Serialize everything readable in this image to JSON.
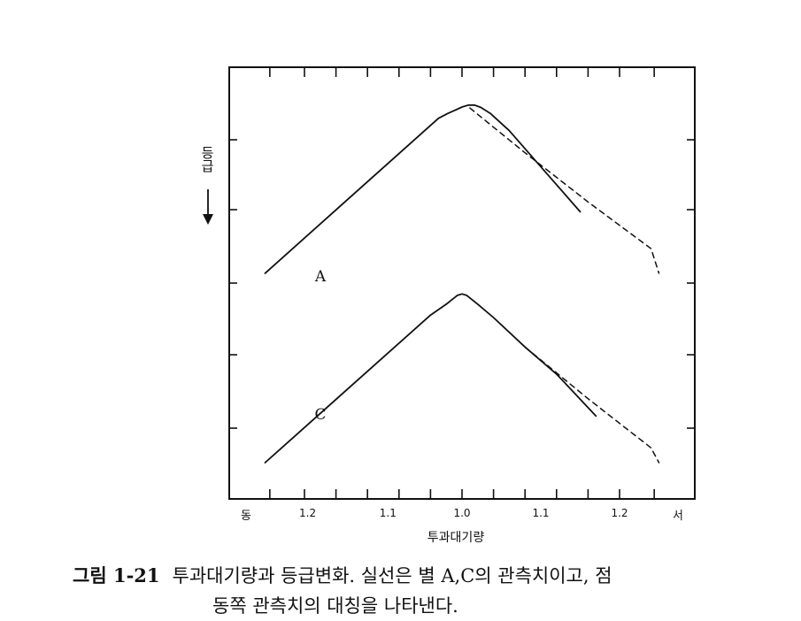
{
  "chart_data": {
    "type": "line",
    "xlabel": "투과대기량",
    "ylabel": "등급",
    "x_ticks": [
      "1.2",
      "1.1",
      "1.0",
      "1.1",
      "1.2"
    ],
    "x_left_end_label": "동",
    "x_right_end_label": "서",
    "x_range": [
      -1.26,
      1.26
    ],
    "y_axis_inverted": true,
    "y_numeric_scale_printed": false,
    "series": [
      {
        "name": "A",
        "style": "solid",
        "points": [
          [
            -1.25,
            4.7
          ],
          [
            -0.15,
            1.55
          ],
          [
            -0.09,
            1.45
          ],
          [
            0.0,
            1.32
          ],
          [
            0.04,
            1.28
          ],
          [
            0.08,
            1.28
          ],
          [
            0.12,
            1.33
          ],
          [
            0.18,
            1.45
          ],
          [
            0.3,
            1.8
          ],
          [
            0.45,
            2.35
          ],
          [
            0.6,
            2.9
          ],
          [
            0.75,
            3.45
          ]
        ]
      },
      {
        "name": "A",
        "style": "dashed",
        "points": [
          [
            0.05,
            1.34
          ],
          [
            0.4,
            2.25
          ],
          [
            0.8,
            3.25
          ],
          [
            1.2,
            4.2
          ],
          [
            1.25,
            4.7
          ]
        ]
      },
      {
        "name": "C",
        "style": "solid",
        "points": [
          [
            -1.25,
            8.55
          ],
          [
            -0.2,
            5.55
          ],
          [
            -0.1,
            5.33
          ],
          [
            -0.03,
            5.15
          ],
          [
            0.0,
            5.12
          ],
          [
            0.03,
            5.15
          ],
          [
            0.1,
            5.33
          ],
          [
            0.2,
            5.6
          ],
          [
            0.4,
            6.2
          ],
          [
            0.6,
            6.75
          ],
          [
            0.85,
            7.6
          ]
        ]
      },
      {
        "name": "C",
        "style": "dashed",
        "points": [
          [
            0.4,
            6.2
          ],
          [
            0.8,
            7.25
          ],
          [
            1.2,
            8.25
          ],
          [
            1.25,
            8.55
          ]
        ]
      }
    ],
    "annotations": [
      "A",
      "C"
    ]
  },
  "caption": {
    "number": "그림 1-21",
    "line1": "투과대기량과 등급변화. 실선은 별 A,C의 관측치이고, 점",
    "line2": "동쪽 관측치의 대칭을 나타낸다."
  }
}
